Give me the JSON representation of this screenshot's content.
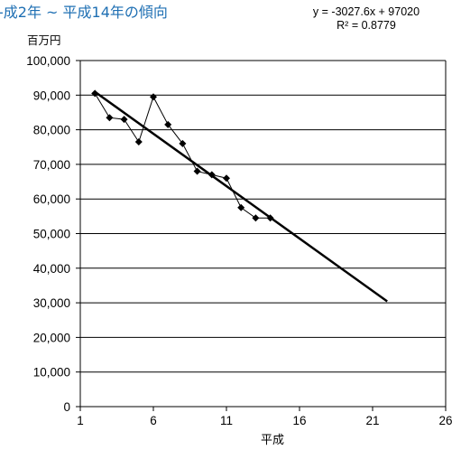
{
  "chart_data": {
    "type": "line",
    "title": "-成2年 ~ 平成14年の傾向",
    "trendline_equation": "y = -3027.6x + 97020",
    "r_squared_label": "R² = 0.8779",
    "ylabel": "百万円",
    "xlabel": "平成",
    "xlim": [
      1,
      26
    ],
    "ylim": [
      0,
      100000
    ],
    "x_ticks": [
      1,
      6,
      11,
      16,
      21,
      26
    ],
    "y_ticks": [
      0,
      10000,
      20000,
      30000,
      40000,
      50000,
      60000,
      70000,
      80000,
      90000,
      100000
    ],
    "y_tick_labels": [
      "0",
      "10,000",
      "20,000",
      "30,000",
      "40,000",
      "50,000",
      "60,000",
      "70,000",
      "80,000",
      "90,000",
      "100,000"
    ],
    "grid": "horizontal",
    "series": [
      {
        "x": [
          2,
          3,
          4,
          5,
          6,
          7,
          8,
          9,
          10,
          11,
          12,
          13,
          14
        ],
        "values": [
          90500,
          83500,
          83000,
          76500,
          89500,
          81500,
          76000,
          68000,
          67000,
          66000,
          57500,
          54500,
          54500
        ]
      }
    ],
    "trendline": {
      "slope": -3027.6,
      "intercept": 97020,
      "x_range": [
        2,
        22
      ]
    },
    "colors": {
      "title": "#1e6fb3",
      "series": "#000000",
      "trend": "#000000",
      "grid": "#000000"
    }
  }
}
